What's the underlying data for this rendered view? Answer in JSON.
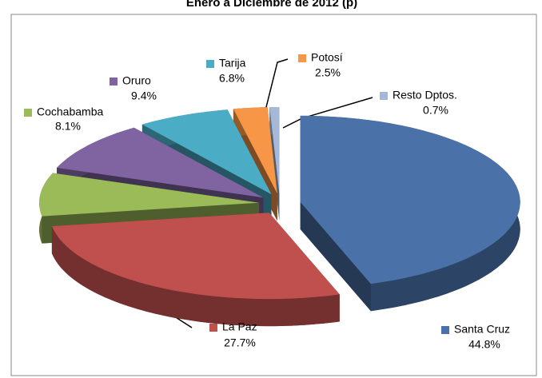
{
  "chart_data": {
    "type": "pie3d",
    "title": "Enero a Diciembre de 2012 (p)",
    "categories": [
      "Santa Cruz",
      "La Paz",
      "Cochabamba",
      "Oruro",
      "Tarija",
      "Potosí",
      "Resto Dptos."
    ],
    "values": [
      44.8,
      27.7,
      8.1,
      9.4,
      6.8,
      2.5,
      0.7
    ],
    "value_labels": [
      "44.8%",
      "27.7%",
      "8.1%",
      "9.4%",
      "6.8%",
      "2.5%",
      "0.7%"
    ],
    "colors": [
      "#4a72a8",
      "#c0504d",
      "#9bbb59",
      "#8064a2",
      "#4bacc6",
      "#f79646",
      "#a5b8d8"
    ]
  }
}
